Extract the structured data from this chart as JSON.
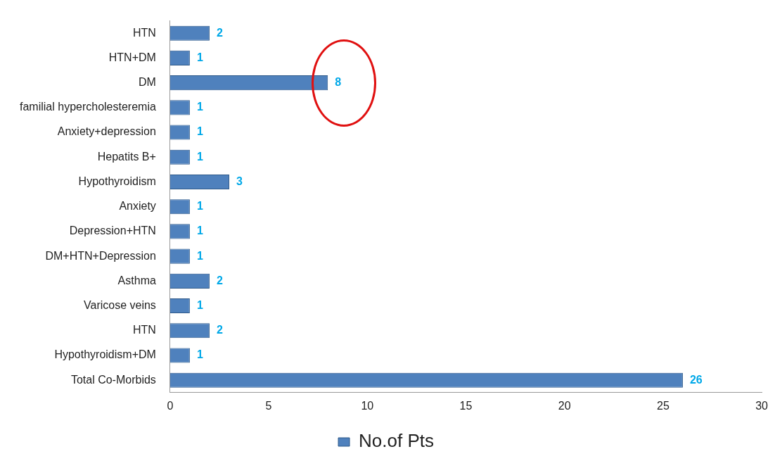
{
  "chart_data": {
    "type": "bar",
    "orientation": "horizontal",
    "categories": [
      "HTN",
      "HTN+DM",
      "DM",
      "familial hypercholesteremia",
      "Anxiety+depression",
      "Hepatits B+",
      "Hypothyroidism",
      "Anxiety",
      "Depression+HTN",
      "DM+HTN+Depression",
      "Asthma",
      "Varicose veins",
      "HTN",
      "Hypothyroidism+DM",
      "Total Co-Morbids"
    ],
    "series": [
      {
        "name": "No.of Pts",
        "color": "#4f81bd",
        "values": [
          2,
          1,
          8,
          1,
          1,
          1,
          3,
          1,
          1,
          1,
          2,
          1,
          2,
          1,
          26
        ]
      }
    ],
    "xlim": [
      0,
      30
    ],
    "xticks": [
      0,
      5,
      10,
      15,
      20,
      25,
      30
    ],
    "grid": false,
    "legend": "bottom",
    "data_labels": true
  }
}
